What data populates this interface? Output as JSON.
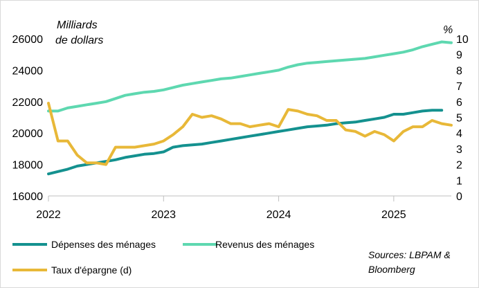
{
  "chart_data": {
    "type": "line",
    "y_left_label_line1": "Milliards",
    "y_left_label_line2": "de dollars",
    "y_right_label": "%",
    "ylim_left": [
      16000,
      26000
    ],
    "ylim_right": [
      0,
      10
    ],
    "y_left_ticks": [
      "16000",
      "18000",
      "20000",
      "22000",
      "24000",
      "26000"
    ],
    "y_right_ticks": [
      "0",
      "1",
      "2",
      "3",
      "4",
      "5",
      "6",
      "7",
      "8",
      "9",
      "10"
    ],
    "x_ticks": [
      "2022",
      "2023",
      "2024",
      "2025"
    ],
    "x_range": [
      2022.0,
      2025.5
    ],
    "series": [
      {
        "name": "Dépenses des ménages",
        "axis": "left",
        "color": "#14918f",
        "x": [
          2022.0,
          2022.083,
          2022.167,
          2022.25,
          2022.333,
          2022.417,
          2022.5,
          2022.583,
          2022.667,
          2022.75,
          2022.833,
          2022.917,
          2023.0,
          2023.083,
          2023.167,
          2023.25,
          2023.333,
          2023.417,
          2023.5,
          2023.583,
          2023.667,
          2023.75,
          2023.833,
          2023.917,
          2024.0,
          2024.083,
          2024.167,
          2024.25,
          2024.333,
          2024.417,
          2024.5,
          2024.583,
          2024.667,
          2024.75,
          2024.833,
          2024.917,
          2025.0,
          2025.083,
          2025.167,
          2025.25,
          2025.333,
          2025.417
        ],
        "values": [
          17400,
          17550,
          17700,
          17900,
          18000,
          18100,
          18200,
          18300,
          18450,
          18550,
          18650,
          18700,
          18800,
          19100,
          19200,
          19250,
          19300,
          19400,
          19500,
          19600,
          19700,
          19800,
          19900,
          20000,
          20100,
          20200,
          20300,
          20400,
          20450,
          20500,
          20600,
          20650,
          20700,
          20800,
          20900,
          21000,
          21200,
          21200,
          21300,
          21400,
          21450,
          21450
        ]
      },
      {
        "name": "Revenus des ménages",
        "axis": "left",
        "color": "#5ed8b0",
        "x": [
          2022.0,
          2022.083,
          2022.167,
          2022.25,
          2022.333,
          2022.417,
          2022.5,
          2022.583,
          2022.667,
          2022.75,
          2022.833,
          2022.917,
          2023.0,
          2023.083,
          2023.167,
          2023.25,
          2023.333,
          2023.417,
          2023.5,
          2023.583,
          2023.667,
          2023.75,
          2023.833,
          2023.917,
          2024.0,
          2024.083,
          2024.167,
          2024.25,
          2024.333,
          2024.417,
          2024.5,
          2024.583,
          2024.667,
          2024.75,
          2024.833,
          2024.917,
          2025.0,
          2025.083,
          2025.167,
          2025.25,
          2025.333,
          2025.417,
          2025.5
        ],
        "values": [
          21400,
          21400,
          21600,
          21700,
          21800,
          21900,
          22000,
          22200,
          22400,
          22500,
          22600,
          22650,
          22750,
          22900,
          23050,
          23150,
          23250,
          23350,
          23450,
          23500,
          23600,
          23700,
          23800,
          23900,
          24000,
          24200,
          24350,
          24450,
          24500,
          24550,
          24600,
          24650,
          24700,
          24750,
          24850,
          24950,
          25050,
          25150,
          25300,
          25500,
          25650,
          25800,
          25750
        ]
      },
      {
        "name": "Taux d'épargne (d)",
        "axis": "right",
        "color": "#e8b838",
        "x": [
          2022.0,
          2022.083,
          2022.167,
          2022.25,
          2022.333,
          2022.417,
          2022.5,
          2022.583,
          2022.667,
          2022.75,
          2022.833,
          2022.917,
          2023.0,
          2023.083,
          2023.167,
          2023.25,
          2023.333,
          2023.417,
          2023.5,
          2023.583,
          2023.667,
          2023.75,
          2023.833,
          2023.917,
          2024.0,
          2024.083,
          2024.167,
          2024.25,
          2024.333,
          2024.417,
          2024.5,
          2024.583,
          2024.667,
          2024.75,
          2024.833,
          2024.917,
          2025.0,
          2025.083,
          2025.167,
          2025.25,
          2025.333,
          2025.417,
          2025.5
        ],
        "values": [
          5.9,
          3.5,
          3.5,
          2.6,
          2.1,
          2.1,
          2.0,
          3.1,
          3.1,
          3.1,
          3.2,
          3.3,
          3.5,
          3.9,
          4.4,
          5.2,
          5.0,
          5.1,
          4.9,
          4.6,
          4.6,
          4.4,
          4.5,
          4.6,
          4.4,
          5.5,
          5.4,
          5.2,
          5.1,
          4.8,
          4.8,
          4.2,
          4.1,
          3.8,
          4.1,
          3.9,
          3.5,
          4.1,
          4.4,
          4.4,
          4.8,
          4.6,
          4.5
        ]
      }
    ],
    "legend": [
      {
        "label": "Dépenses des ménages",
        "color": "#14918f"
      },
      {
        "label": "Revenus des ménages",
        "color": "#5ed8b0"
      },
      {
        "label": "Taux d'épargne (d)",
        "color": "#e8b838"
      }
    ],
    "source_line1": "Sources: LBPAM &",
    "source_line2": "Bloomberg"
  }
}
